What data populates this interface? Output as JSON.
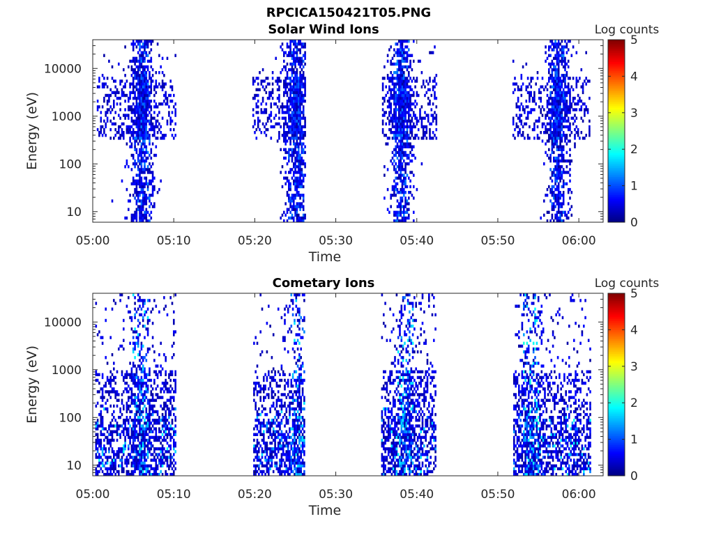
{
  "figure_title": "RPCICA150421T05.PNG",
  "chart_data": [
    {
      "type": "heatmap",
      "title": "Solar Wind Ions",
      "xlabel": "Time",
      "ylabel": "Energy (eV)",
      "x_ticks": [
        "05:00",
        "05:10",
        "05:20",
        "05:30",
        "05:40",
        "05:50",
        "06:00"
      ],
      "xlim_minutes": [
        0,
        63
      ],
      "y_scale": "log",
      "y_ticks": [
        "10",
        "100",
        "1000",
        "10000"
      ],
      "ylim": [
        6,
        40000
      ],
      "colorbar_label": "Log counts",
      "colorbar_ticks": [
        "0",
        "1",
        "2",
        "3",
        "4",
        "5"
      ],
      "clim": [
        0,
        5
      ],
      "bursts": [
        {
          "start_min": 0.5,
          "end_min": 10.0,
          "peak_min": 6.0,
          "max_log": 1.3
        },
        {
          "start_min": 19.7,
          "end_min": 26.0,
          "peak_min": 25.0,
          "max_log": 1.2
        },
        {
          "start_min": 35.7,
          "end_min": 42.2,
          "peak_min": 38.0,
          "max_log": 1.3
        },
        {
          "start_min": 51.8,
          "end_min": 61.2,
          "peak_min": 57.3,
          "max_log": 1.3
        }
      ]
    },
    {
      "type": "heatmap",
      "title": "Cometary Ions",
      "xlabel": "Time",
      "ylabel": "Energy (eV)",
      "x_ticks": [
        "05:00",
        "05:10",
        "05:20",
        "05:30",
        "05:40",
        "05:50",
        "06:00"
      ],
      "xlim_minutes": [
        0,
        63
      ],
      "y_scale": "log",
      "y_ticks": [
        "10",
        "100",
        "1000",
        "10000"
      ],
      "ylim": [
        6,
        40000
      ],
      "colorbar_label": "Log counts",
      "colorbar_ticks": [
        "0",
        "1",
        "2",
        "3",
        "4",
        "5"
      ],
      "clim": [
        0,
        5
      ],
      "bursts": [
        {
          "start_min": 0.3,
          "end_min": 10.2,
          "peak_min": 5.8,
          "max_log": 1.9
        },
        {
          "start_min": 19.8,
          "end_min": 26.0,
          "peak_min": 25.3,
          "max_log": 1.8
        },
        {
          "start_min": 35.6,
          "end_min": 42.1,
          "peak_min": 38.5,
          "max_log": 1.9
        },
        {
          "start_min": 51.9,
          "end_min": 61.3,
          "peak_min": 54.0,
          "max_log": 2.0
        }
      ]
    }
  ]
}
